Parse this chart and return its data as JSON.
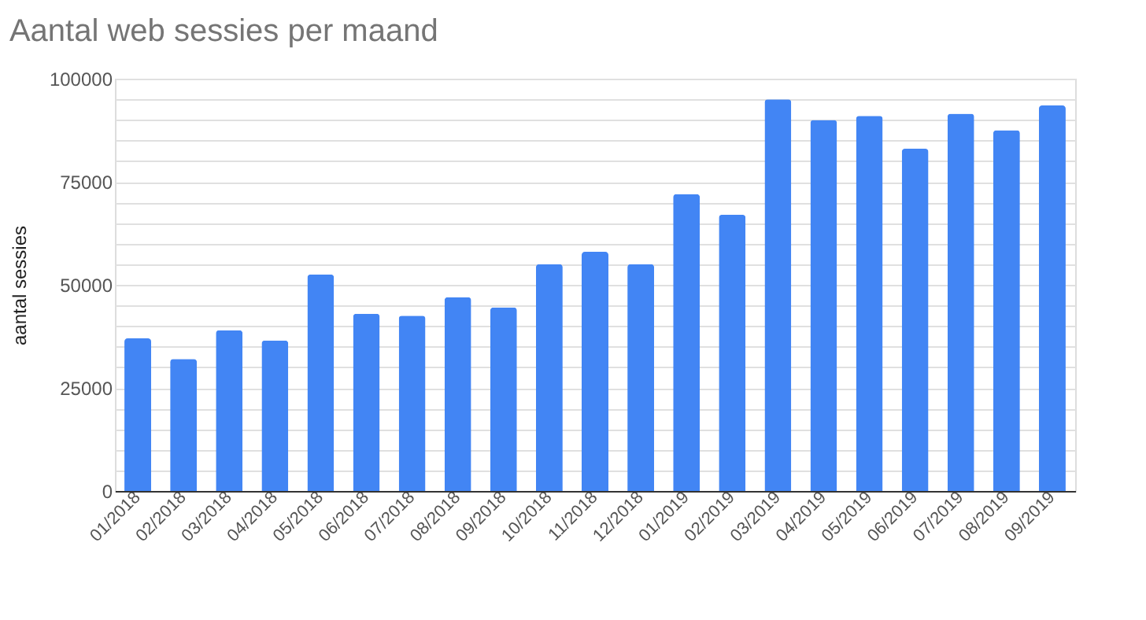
{
  "chart_data": {
    "type": "bar",
    "title": "Aantal web sessies per maand",
    "ylabel": "aantal sessies",
    "categories": [
      "01/2018",
      "02/2018",
      "03/2018",
      "04/2018",
      "05/2018",
      "06/2018",
      "07/2018",
      "08/2018",
      "09/2018",
      "10/2018",
      "11/2018",
      "12/2018",
      "01/2019",
      "02/2019",
      "03/2019",
      "04/2019",
      "05/2019",
      "06/2019",
      "07/2019",
      "08/2019",
      "09/2019"
    ],
    "values": [
      37000,
      32000,
      39000,
      36500,
      52500,
      43000,
      42500,
      47000,
      44500,
      55000,
      58000,
      55000,
      72000,
      67000,
      95000,
      90000,
      91000,
      83000,
      91500,
      87500,
      93500
    ],
    "color": "#4285f4",
    "ylim": [
      0,
      100000
    ],
    "yticks": [
      0,
      {
        "value": 5000,
        "label": null
      },
      {
        "value": 10000,
        "label": null
      },
      {
        "value": 15000,
        "label": null
      },
      {
        "value": 20000,
        "label": null
      },
      25000,
      {
        "value": 30000,
        "label": null
      },
      {
        "value": 35000,
        "label": null
      },
      {
        "value": 40000,
        "label": null
      },
      {
        "value": 45000,
        "label": null
      },
      50000,
      {
        "value": 55000,
        "label": null
      },
      {
        "value": 60000,
        "label": null
      },
      {
        "value": 65000,
        "label": null
      },
      {
        "value": 70000,
        "label": null
      },
      75000,
      {
        "value": 80000,
        "label": null
      },
      {
        "value": 85000,
        "label": null
      },
      {
        "value": 90000,
        "label": null
      },
      {
        "value": 95000,
        "label": null
      },
      100000
    ],
    "grid": "y"
  }
}
